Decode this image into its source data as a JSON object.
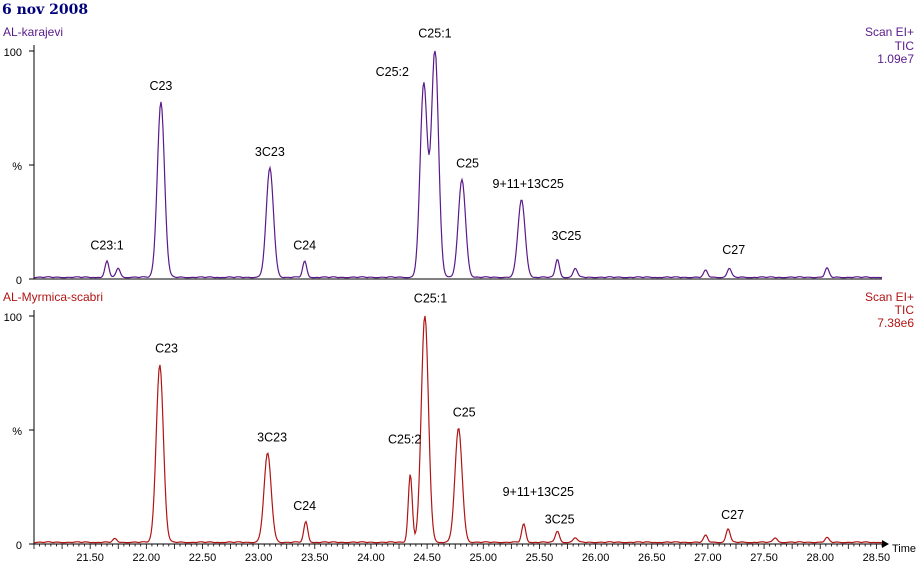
{
  "date": "6 nov 2008",
  "axis": {
    "x_ticks": [
      "21.50",
      "22.00",
      "22.50",
      "23.00",
      "23.50",
      "24.00",
      "24.50",
      "25.00",
      "25.50",
      "26.00",
      "26.50",
      "27.00",
      "27.50",
      "28.00",
      "28.50"
    ],
    "x_unit": "Time",
    "y_top": "100",
    "y_mid": "%",
    "y_zero": "0"
  },
  "colors": {
    "top": "#5a1a8a",
    "bottom": "#b01515",
    "axis": "#000000"
  },
  "chart_data": [
    {
      "type": "line",
      "name": "AL-karajevi",
      "scan": "Scan EI+",
      "mode": "TIC",
      "max_intensity": "1.09e7",
      "xlim": [
        21.0,
        28.55
      ],
      "ylim": [
        0,
        100
      ],
      "peaks": [
        {
          "label": "C23:1",
          "x": 21.65,
          "y": 7
        },
        {
          "label": "",
          "x": 21.75,
          "y": 4
        },
        {
          "label": "C23",
          "x": 22.13,
          "y": 77
        },
        {
          "label": "3C23",
          "x": 23.1,
          "y": 48
        },
        {
          "label": "C24",
          "x": 23.41,
          "y": 7
        },
        {
          "label": "C25:2",
          "x": 24.47,
          "y": 85
        },
        {
          "label": "C25:1",
          "x": 24.57,
          "y": 100
        },
        {
          "label": "C25",
          "x": 24.81,
          "y": 43
        },
        {
          "label": "9+11+13C25",
          "x": 25.34,
          "y": 34
        },
        {
          "label": "3C25",
          "x": 25.66,
          "y": 8
        },
        {
          "label": "",
          "x": 25.82,
          "y": 4
        },
        {
          "label": "",
          "x": 26.98,
          "y": 3
        },
        {
          "label": "C27",
          "x": 27.19,
          "y": 4
        },
        {
          "label": "",
          "x": 28.06,
          "y": 4
        }
      ],
      "label_positions": [
        {
          "label": "C23:1",
          "x": 21.65,
          "y": 13
        },
        {
          "label": "C23",
          "x": 22.13,
          "y": 83
        },
        {
          "label": "3C23",
          "x": 23.1,
          "y": 54
        },
        {
          "label": "C24",
          "x": 23.41,
          "y": 13
        },
        {
          "label": "C25:2",
          "x": 24.19,
          "y": 89
        },
        {
          "label": "C25:1",
          "x": 24.57,
          "y": 106
        },
        {
          "label": "C25",
          "x": 24.86,
          "y": 49
        },
        {
          "label": "9+11+13C25",
          "x": 25.4,
          "y": 40
        },
        {
          "label": "3C25",
          "x": 25.74,
          "y": 17
        },
        {
          "label": "C27",
          "x": 27.23,
          "y": 11
        }
      ]
    },
    {
      "type": "line",
      "name": "AL-Myrmica-scabri",
      "scan": "Scan EI+",
      "mode": "TIC",
      "max_intensity": "7.38e6",
      "xlim": [
        21.0,
        28.55
      ],
      "ylim": [
        0,
        100
      ],
      "peaks": [
        {
          "label": "",
          "x": 21.72,
          "y": 1.5
        },
        {
          "label": "C23",
          "x": 22.12,
          "y": 78
        },
        {
          "label": "3C23",
          "x": 23.08,
          "y": 39
        },
        {
          "label": "C24",
          "x": 23.42,
          "y": 9
        },
        {
          "label": "C25:2",
          "x": 24.35,
          "y": 30
        },
        {
          "label": "C25:1",
          "x": 24.48,
          "y": 100
        },
        {
          "label": "C25",
          "x": 24.78,
          "y": 50
        },
        {
          "label": "9+11+13C25",
          "x": 25.36,
          "y": 8
        },
        {
          "label": "3C25",
          "x": 25.66,
          "y": 5
        },
        {
          "label": "",
          "x": 25.82,
          "y": 2
        },
        {
          "label": "",
          "x": 26.98,
          "y": 3
        },
        {
          "label": "C27",
          "x": 27.18,
          "y": 6
        },
        {
          "label": "",
          "x": 27.6,
          "y": 2
        },
        {
          "label": "",
          "x": 28.06,
          "y": 2
        }
      ],
      "label_positions": [
        {
          "label": "C23",
          "x": 22.18,
          "y": 84
        },
        {
          "label": "3C23",
          "x": 23.12,
          "y": 45
        },
        {
          "label": "C24",
          "x": 23.41,
          "y": 15
        },
        {
          "label": "C25:2",
          "x": 24.3,
          "y": 44
        },
        {
          "label": "C25:1",
          "x": 24.53,
          "y": 106
        },
        {
          "label": "C25",
          "x": 24.83,
          "y": 56
        },
        {
          "label": "9+11+13C25",
          "x": 25.49,
          "y": 21
        },
        {
          "label": "3C25",
          "x": 25.68,
          "y": 9
        },
        {
          "label": "C27",
          "x": 27.22,
          "y": 11
        }
      ]
    }
  ]
}
